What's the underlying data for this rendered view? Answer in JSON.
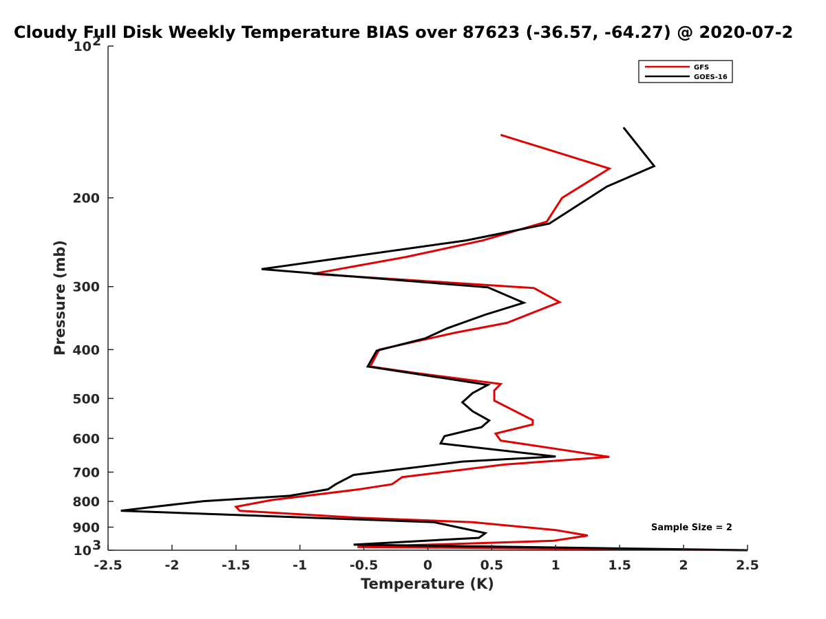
{
  "chart_data": {
    "type": "line",
    "title": "Cloudy Full Disk Weekly Temperature BIAS over 87623 (-36.57, -64.27) @ 2020-07-2",
    "xlabel": "Temperature (K)",
    "ylabel": "Pressure (mb)",
    "xlim": [
      -2.5,
      2.5
    ],
    "ylim": [
      100,
      1000
    ],
    "y_scale": "log",
    "y_reversed": true,
    "grid": false,
    "legend_position": "top-right",
    "x_ticks": [
      "-2.5",
      "-2",
      "-1.5",
      "-1",
      "-0.5",
      "0",
      "0.5",
      "1",
      "1.5",
      "2",
      "2.5"
    ],
    "x_tick_values": [
      -2.5,
      -2,
      -1.5,
      -1,
      -0.5,
      0,
      0.5,
      1,
      1.5,
      2,
      2.5
    ],
    "y_ticks": [
      {
        "value": 100,
        "base": "10",
        "exp": "2"
      },
      {
        "value": 200,
        "base": "200",
        "exp": ""
      },
      {
        "value": 300,
        "base": "300",
        "exp": ""
      },
      {
        "value": 400,
        "base": "400",
        "exp": ""
      },
      {
        "value": 500,
        "base": "500",
        "exp": ""
      },
      {
        "value": 600,
        "base": "600",
        "exp": ""
      },
      {
        "value": 700,
        "base": "700",
        "exp": ""
      },
      {
        "value": 800,
        "base": "800",
        "exp": ""
      },
      {
        "value": 900,
        "base": "900",
        "exp": ""
      },
      {
        "value": 1000,
        "base": "10",
        "exp": "3"
      }
    ],
    "annotation": "Sample Size = 2",
    "series": [
      {
        "name": "GFS",
        "color": "#e30000",
        "points": [
          [
            0.57,
            150
          ],
          [
            1.42,
            175
          ],
          [
            1.05,
            200
          ],
          [
            0.93,
            223
          ],
          [
            0.43,
            243
          ],
          [
            -0.17,
            262
          ],
          [
            -0.9,
            283
          ],
          [
            0.83,
            302
          ],
          [
            1.03,
            322
          ],
          [
            0.62,
            354
          ],
          [
            0.22,
            370
          ],
          [
            -0.38,
            400
          ],
          [
            -0.45,
            432
          ],
          [
            -0.1,
            445
          ],
          [
            0.57,
            468
          ],
          [
            0.52,
            482
          ],
          [
            0.52,
            505
          ],
          [
            0.82,
            552
          ],
          [
            0.82,
            563
          ],
          [
            0.53,
            587
          ],
          [
            0.57,
            606
          ],
          [
            1.42,
            653
          ],
          [
            0.6,
            676
          ],
          [
            -0.2,
            716
          ],
          [
            -0.28,
            740
          ],
          [
            -0.55,
            758
          ],
          [
            -1.22,
            795
          ],
          [
            -1.5,
            820
          ],
          [
            -1.47,
            835
          ],
          [
            -0.55,
            862
          ],
          [
            0.35,
            880
          ],
          [
            1.0,
            912
          ],
          [
            1.25,
            935
          ],
          [
            0.98,
            958
          ],
          [
            -0.55,
            985
          ],
          [
            2.5,
            1000
          ]
        ]
      },
      {
        "name": "GOES-16",
        "color": "#000000",
        "points": [
          [
            1.53,
            145
          ],
          [
            1.77,
            173
          ],
          [
            1.4,
            190
          ],
          [
            0.95,
            225
          ],
          [
            0.3,
            243
          ],
          [
            -1.3,
            277
          ],
          [
            0.47,
            301
          ],
          [
            0.75,
            323
          ],
          [
            0.45,
            341
          ],
          [
            0.15,
            363
          ],
          [
            -0.02,
            380
          ],
          [
            -0.4,
            402
          ],
          [
            -0.47,
            432
          ],
          [
            0.47,
            470
          ],
          [
            0.35,
            488
          ],
          [
            0.27,
            509
          ],
          [
            0.35,
            530
          ],
          [
            0.48,
            553
          ],
          [
            0.42,
            570
          ],
          [
            0.13,
            594
          ],
          [
            0.1,
            614
          ],
          [
            1.0,
            652
          ],
          [
            0.27,
            667
          ],
          [
            -0.58,
            709
          ],
          [
            -0.72,
            740
          ],
          [
            -0.78,
            757
          ],
          [
            -1.08,
            780
          ],
          [
            -1.75,
            799
          ],
          [
            -2.1,
            818
          ],
          [
            -2.4,
            835
          ],
          [
            0.05,
            880
          ],
          [
            0.45,
            925
          ],
          [
            0.4,
            945
          ],
          [
            -0.58,
            975
          ],
          [
            2.5,
            1000
          ]
        ]
      }
    ]
  }
}
